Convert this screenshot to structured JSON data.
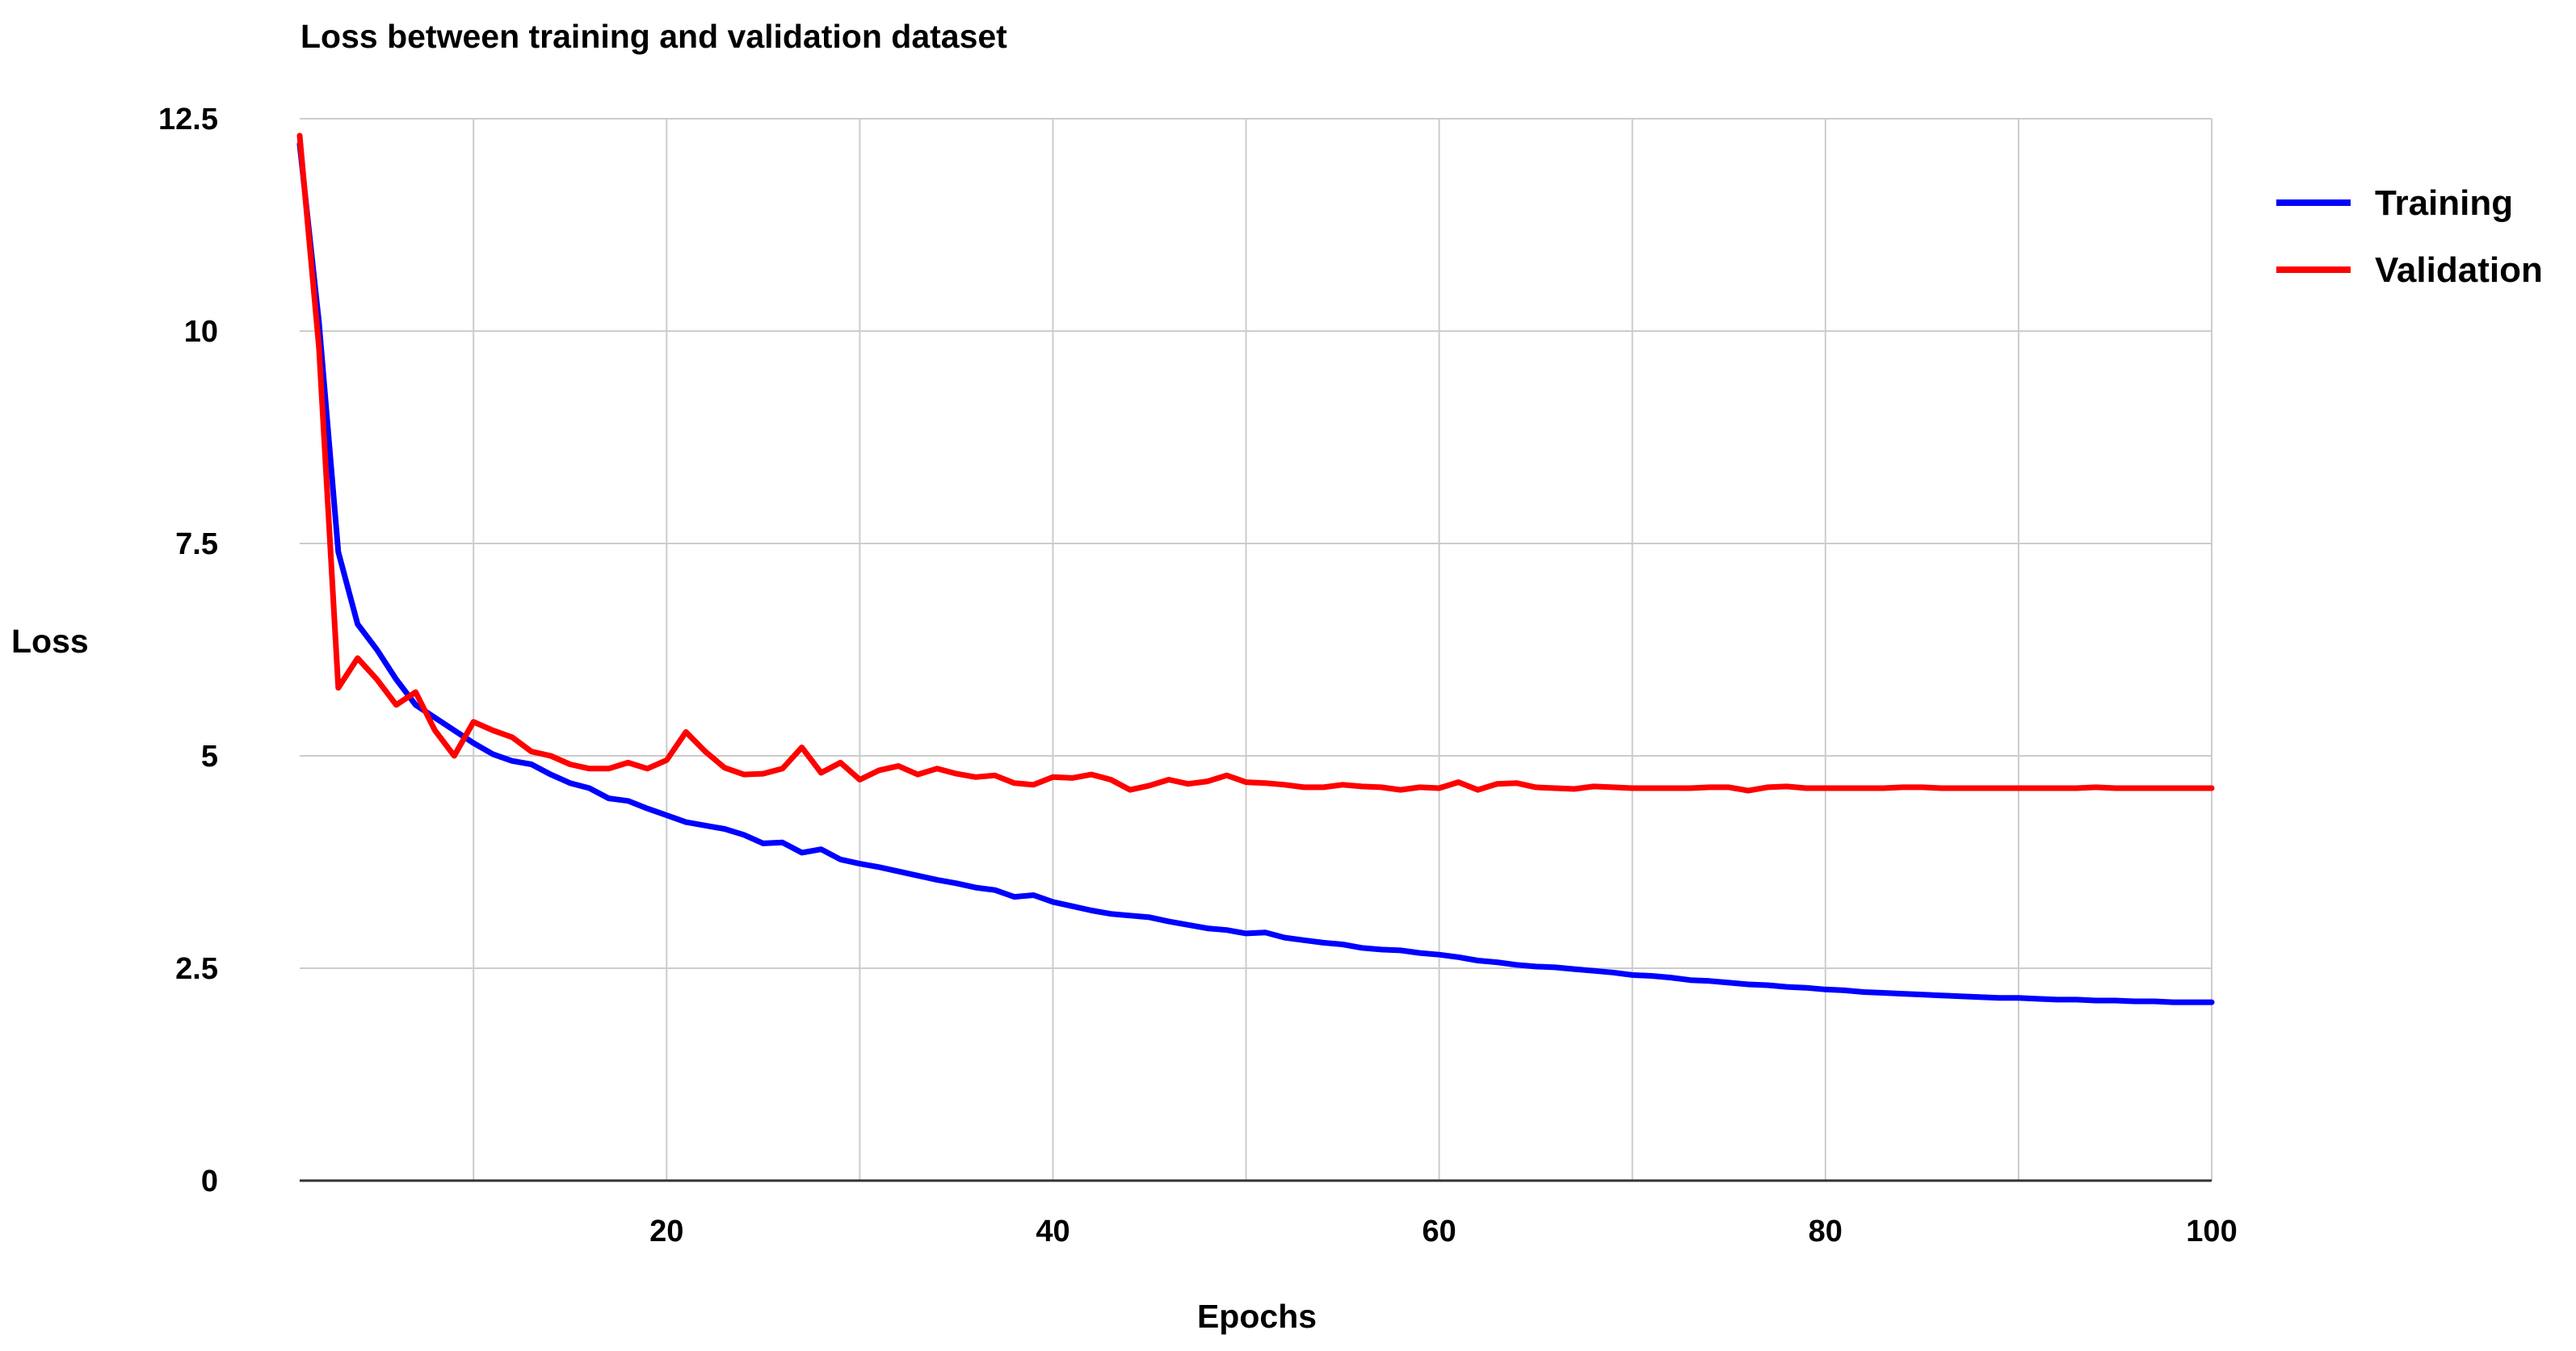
{
  "chart_data": {
    "type": "line",
    "title": "Loss between training and validation dataset",
    "xlabel": "Epochs",
    "ylabel": "Loss",
    "xlim": [
      1,
      100
    ],
    "ylim": [
      0,
      12.5
    ],
    "x_ticks": [
      20,
      40,
      60,
      80,
      100
    ],
    "y_ticks": [
      0,
      2.5,
      5,
      7.5,
      10,
      12.5
    ],
    "x_tick_labels": [
      "20",
      "40",
      "60",
      "80",
      "100"
    ],
    "y_tick_labels": [
      "0",
      "2.5",
      "5",
      "7.5",
      "10",
      "12.5"
    ],
    "grid": true,
    "legend_position": "right",
    "series": [
      {
        "name": "Training",
        "color": "#0000ff",
        "x": [
          1,
          2,
          3,
          4,
          5,
          6,
          7,
          8,
          9,
          10,
          11,
          12,
          13,
          14,
          15,
          16,
          17,
          18,
          19,
          20,
          21,
          22,
          23,
          24,
          25,
          26,
          27,
          28,
          29,
          30,
          31,
          32,
          33,
          34,
          35,
          36,
          37,
          38,
          39,
          40,
          41,
          42,
          43,
          44,
          45,
          46,
          47,
          48,
          49,
          50,
          51,
          52,
          53,
          54,
          55,
          56,
          57,
          58,
          59,
          60,
          61,
          62,
          63,
          64,
          65,
          66,
          67,
          68,
          69,
          70,
          71,
          72,
          73,
          74,
          75,
          76,
          77,
          78,
          79,
          80,
          81,
          82,
          83,
          84,
          85,
          86,
          87,
          88,
          89,
          90,
          91,
          92,
          93,
          94,
          95,
          96,
          97,
          98,
          99,
          100
        ],
        "values": [
          12.2,
          10.1,
          7.4,
          6.55,
          6.25,
          5.9,
          5.6,
          5.45,
          5.3,
          5.15,
          5.02,
          4.94,
          4.9,
          4.78,
          4.68,
          4.62,
          4.5,
          4.47,
          4.38,
          4.3,
          4.22,
          4.18,
          4.14,
          4.07,
          3.97,
          3.98,
          3.86,
          3.9,
          3.78,
          3.73,
          3.69,
          3.64,
          3.59,
          3.54,
          3.5,
          3.45,
          3.42,
          3.34,
          3.36,
          3.28,
          3.23,
          3.18,
          3.14,
          3.12,
          3.1,
          3.05,
          3.01,
          2.97,
          2.95,
          2.91,
          2.92,
          2.86,
          2.83,
          2.8,
          2.78,
          2.74,
          2.72,
          2.71,
          2.68,
          2.66,
          2.63,
          2.59,
          2.57,
          2.54,
          2.52,
          2.51,
          2.49,
          2.47,
          2.45,
          2.42,
          2.41,
          2.39,
          2.36,
          2.35,
          2.33,
          2.31,
          2.3,
          2.28,
          2.27,
          2.25,
          2.24,
          2.22,
          2.21,
          2.2,
          2.19,
          2.18,
          2.17,
          2.16,
          2.15,
          2.15,
          2.14,
          2.13,
          2.13,
          2.12,
          2.12,
          2.11,
          2.11,
          2.1,
          2.1,
          2.1
        ]
      },
      {
        "name": "Validation",
        "color": "#ff0000",
        "x": [
          1,
          2,
          3,
          4,
          5,
          6,
          7,
          8,
          9,
          10,
          11,
          12,
          13,
          14,
          15,
          16,
          17,
          18,
          19,
          20,
          21,
          22,
          23,
          24,
          25,
          26,
          27,
          28,
          29,
          30,
          31,
          32,
          33,
          34,
          35,
          36,
          37,
          38,
          39,
          40,
          41,
          42,
          43,
          44,
          45,
          46,
          47,
          48,
          49,
          50,
          51,
          52,
          53,
          54,
          55,
          56,
          57,
          58,
          59,
          60,
          61,
          62,
          63,
          64,
          65,
          66,
          67,
          68,
          69,
          70,
          71,
          72,
          73,
          74,
          75,
          76,
          77,
          78,
          79,
          80,
          81,
          82,
          83,
          84,
          85,
          86,
          87,
          88,
          89,
          90,
          91,
          92,
          93,
          94,
          95,
          96,
          97,
          98,
          99,
          100
        ],
        "values": [
          12.3,
          9.8,
          5.8,
          6.15,
          5.9,
          5.6,
          5.75,
          5.3,
          5.0,
          5.4,
          5.3,
          5.22,
          5.05,
          5.0,
          4.9,
          4.85,
          4.85,
          4.92,
          4.85,
          4.95,
          5.28,
          5.05,
          4.86,
          4.78,
          4.79,
          4.85,
          5.1,
          4.8,
          4.92,
          4.72,
          4.83,
          4.88,
          4.78,
          4.85,
          4.79,
          4.75,
          4.77,
          4.68,
          4.66,
          4.75,
          4.74,
          4.78,
          4.72,
          4.6,
          4.65,
          4.72,
          4.67,
          4.7,
          4.77,
          4.69,
          4.68,
          4.66,
          4.63,
          4.63,
          4.66,
          4.64,
          4.63,
          4.6,
          4.63,
          4.62,
          4.69,
          4.6,
          4.67,
          4.68,
          4.63,
          4.62,
          4.61,
          4.64,
          4.63,
          4.62,
          4.62,
          4.62,
          4.62,
          4.63,
          4.63,
          4.59,
          4.63,
          4.64,
          4.62,
          4.62,
          4.62,
          4.62,
          4.62,
          4.63,
          4.63,
          4.62,
          4.62,
          4.62,
          4.62,
          4.62,
          4.62,
          4.62,
          4.62,
          4.63,
          4.62,
          4.62,
          4.62,
          4.62,
          4.62,
          4.62
        ]
      }
    ]
  }
}
